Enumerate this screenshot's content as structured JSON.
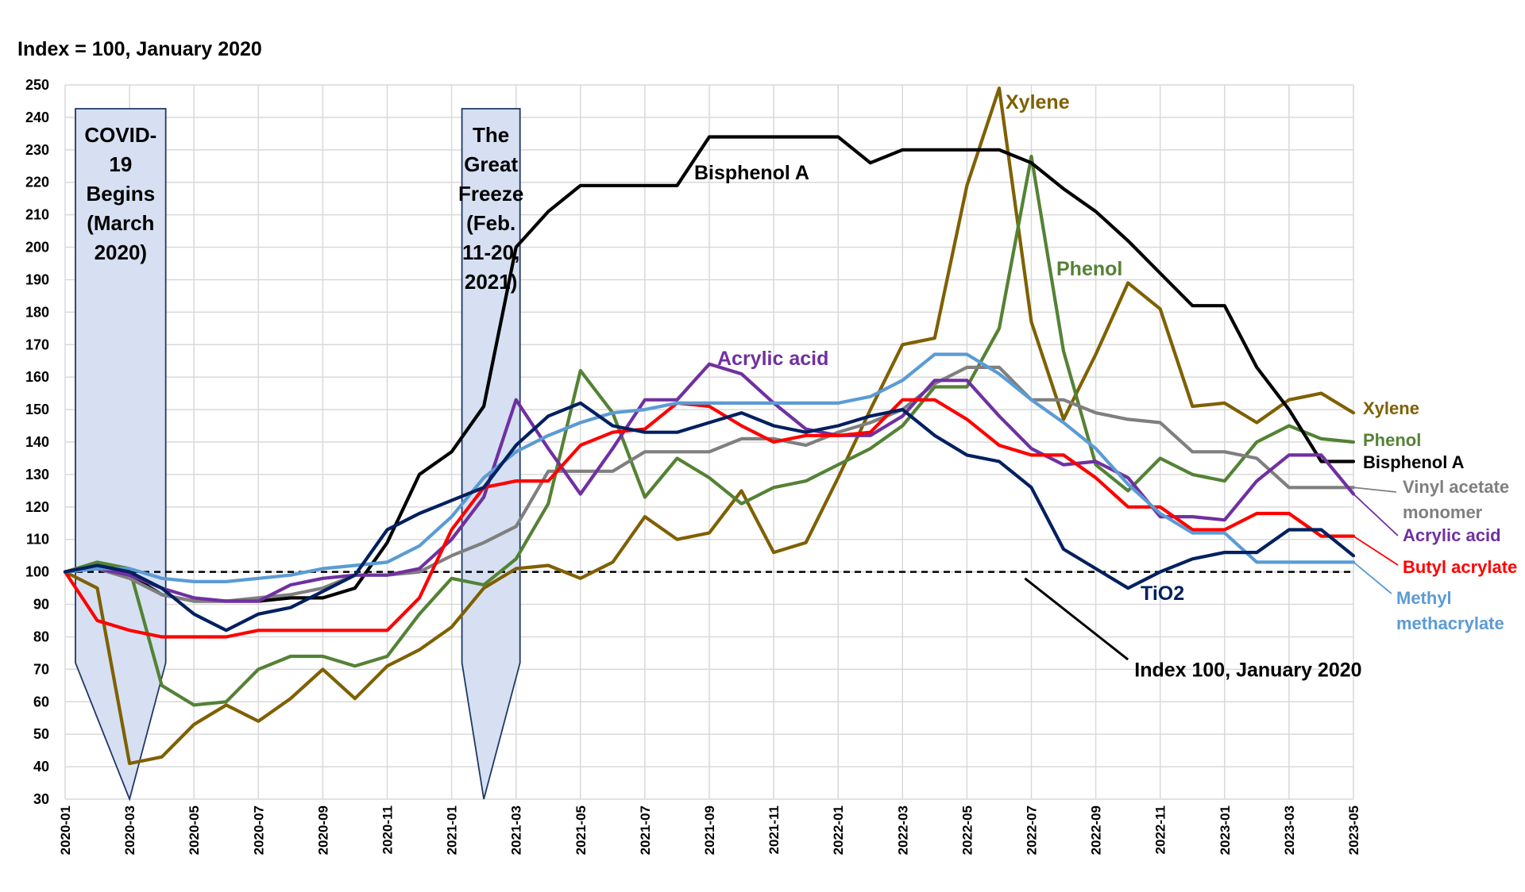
{
  "chart_data": {
    "type": "line",
    "title": "Index = 100, January 2020",
    "ylim": [
      30,
      250
    ],
    "yticks": [
      30,
      40,
      50,
      60,
      70,
      80,
      90,
      100,
      110,
      120,
      130,
      140,
      150,
      160,
      170,
      180,
      190,
      200,
      210,
      220,
      230,
      240,
      250
    ],
    "x": [
      "2020-01",
      "2020-02",
      "2020-03",
      "2020-04",
      "2020-05",
      "2020-06",
      "2020-07",
      "2020-08",
      "2020-09",
      "2020-10",
      "2020-11",
      "2020-12",
      "2021-01",
      "2021-02",
      "2021-03",
      "2021-04",
      "2021-05",
      "2021-06",
      "2021-07",
      "2021-08",
      "2021-09",
      "2021-10",
      "2021-11",
      "2021-12",
      "2022-01",
      "2022-02",
      "2022-03",
      "2022-04",
      "2022-05",
      "2022-06",
      "2022-07",
      "2022-08",
      "2022-09",
      "2022-10",
      "2022-11",
      "2022-12",
      "2023-01",
      "2023-02",
      "2023-03",
      "2023-04",
      "2023-05"
    ],
    "xtick_labels": [
      "2020-01",
      "2020-03",
      "2020-05",
      "2020-07",
      "2020-09",
      "2020-11",
      "2021-01",
      "2021-03",
      "2021-05",
      "2021-07",
      "2021-09",
      "2021-11",
      "2022-01",
      "2022-03",
      "2022-05",
      "2022-07",
      "2022-09",
      "2022-11",
      "2023-01",
      "2023-03",
      "2023-05"
    ],
    "grid": true,
    "reference_line": {
      "value": 100,
      "label": "Index 100, January 2020",
      "color": "#000000"
    },
    "events": [
      {
        "start": "2020-01",
        "end": "2020-04",
        "pointer": "2020-03",
        "lines": [
          "COVID-",
          "19",
          "Begins",
          "(March",
          "2020)"
        ],
        "fill": "#d6e0f2",
        "stroke": "#1f3864"
      },
      {
        "start": "2021-01",
        "end": "2021-03",
        "pointer": "2021-02",
        "lines": [
          "The",
          "Great",
          "Freeze",
          "(Feb.",
          "11-20,",
          "2021)"
        ],
        "fill": "#d6e0f2",
        "stroke": "#1f3864"
      }
    ],
    "series": [
      {
        "name": "Xylene",
        "legend": [
          "Xylene"
        ],
        "color": "#7f6000",
        "values": [
          100,
          95,
          41,
          43,
          53,
          59,
          54,
          61,
          70,
          61,
          71,
          76,
          83,
          95,
          101,
          102,
          98,
          103,
          117,
          110,
          112,
          125,
          106,
          109,
          129,
          150,
          170,
          172,
          219,
          249,
          177,
          147,
          167,
          189,
          181,
          151,
          152,
          146,
          153,
          155,
          149
        ]
      },
      {
        "name": "Phenol",
        "legend": [
          "Phenol"
        ],
        "color": "#548235",
        "values": [
          100,
          103,
          101,
          65,
          59,
          60,
          70,
          74,
          74,
          71,
          74,
          87,
          98,
          96,
          104,
          121,
          162,
          149,
          123,
          135,
          129,
          121,
          126,
          128,
          133,
          138,
          145,
          157,
          157,
          175,
          228,
          168,
          133,
          125,
          135,
          130,
          128,
          140,
          145,
          141,
          140
        ]
      },
      {
        "name": "Bisphenol A",
        "legend": [
          "Bisphenol A"
        ],
        "color": "#000000",
        "values": [
          100,
          101,
          99,
          93,
          91,
          91,
          91,
          92,
          92,
          95,
          109,
          130,
          137,
          151,
          200,
          211,
          219,
          219,
          219,
          219,
          234,
          234,
          234,
          234,
          234,
          226,
          230,
          230,
          230,
          230,
          226,
          218,
          211,
          202,
          192,
          182,
          182,
          163,
          150,
          134,
          134
        ]
      },
      {
        "name": "Vinyl acetate monomer",
        "legend": [
          "Vinyl acetate",
          "monomer"
        ],
        "color": "#7f7f7f",
        "values": [
          100,
          101,
          98,
          93,
          91,
          91,
          92,
          93,
          95,
          99,
          99,
          100,
          105,
          109,
          114,
          131,
          131,
          131,
          137,
          137,
          137,
          141,
          141,
          139,
          143,
          146,
          150,
          158,
          163,
          163,
          153,
          153,
          149,
          147,
          146,
          137,
          137,
          135,
          126,
          126,
          126
        ]
      },
      {
        "name": "Acrylic acid",
        "legend": [
          "Acrylic acid"
        ],
        "color": "#7030a0",
        "values": [
          100,
          101,
          99,
          95,
          92,
          91,
          91,
          96,
          98,
          99,
          99,
          101,
          110,
          123,
          153,
          138,
          124,
          138,
          153,
          153,
          164,
          161,
          152,
          144,
          142,
          142,
          148,
          159,
          159,
          148,
          138,
          133,
          134,
          129,
          117,
          117,
          116,
          128,
          136,
          136,
          124
        ]
      },
      {
        "name": "Butyl acrylate",
        "legend": [
          "Butyl acrylate"
        ],
        "color": "#ff0000",
        "values": [
          100,
          85,
          82,
          80,
          80,
          80,
          82,
          82,
          82,
          82,
          82,
          92,
          113,
          126,
          128,
          128,
          139,
          143,
          144,
          152,
          151,
          145,
          140,
          142,
          142,
          143,
          153,
          153,
          147,
          139,
          136,
          136,
          129,
          120,
          120,
          113,
          113,
          118,
          118,
          111,
          111
        ]
      },
      {
        "name": "Methyl methacrylate",
        "legend": [
          "Methyl",
          "methacrylate"
        ],
        "color": "#5b9bd5",
        "values": [
          100,
          101,
          101,
          98,
          97,
          97,
          98,
          99,
          101,
          102,
          103,
          108,
          117,
          129,
          137,
          142,
          146,
          149,
          150,
          152,
          152,
          152,
          152,
          152,
          152,
          154,
          159,
          167,
          167,
          161,
          153,
          146,
          138,
          127,
          118,
          112,
          112,
          103,
          103,
          103,
          103
        ]
      },
      {
        "name": "TiO2",
        "legend": [
          "TiO2"
        ],
        "color": "#002060",
        "values": [
          100,
          102,
          100,
          95,
          87,
          82,
          87,
          89,
          94,
          99,
          113,
          118,
          122,
          126,
          139,
          148,
          152,
          145,
          143,
          143,
          146,
          149,
          145,
          143,
          145,
          148,
          150,
          142,
          136,
          134,
          126,
          107,
          101,
          95,
          100,
          104,
          106,
          106,
          113,
          113,
          105
        ]
      }
    ],
    "inline_labels": [
      {
        "text": "Xylene",
        "series": "Xylene",
        "color": "#7f6000"
      },
      {
        "text": "Phenol",
        "series": "Phenol",
        "color": "#548235"
      },
      {
        "text": "Bisphenol A",
        "series": "Bisphenol A",
        "color": "#000000"
      },
      {
        "text": "Acrylic acid",
        "series": "Acrylic acid",
        "color": "#7030a0"
      },
      {
        "text": "TiO2",
        "series": "TiO2",
        "color": "#002060"
      }
    ]
  }
}
